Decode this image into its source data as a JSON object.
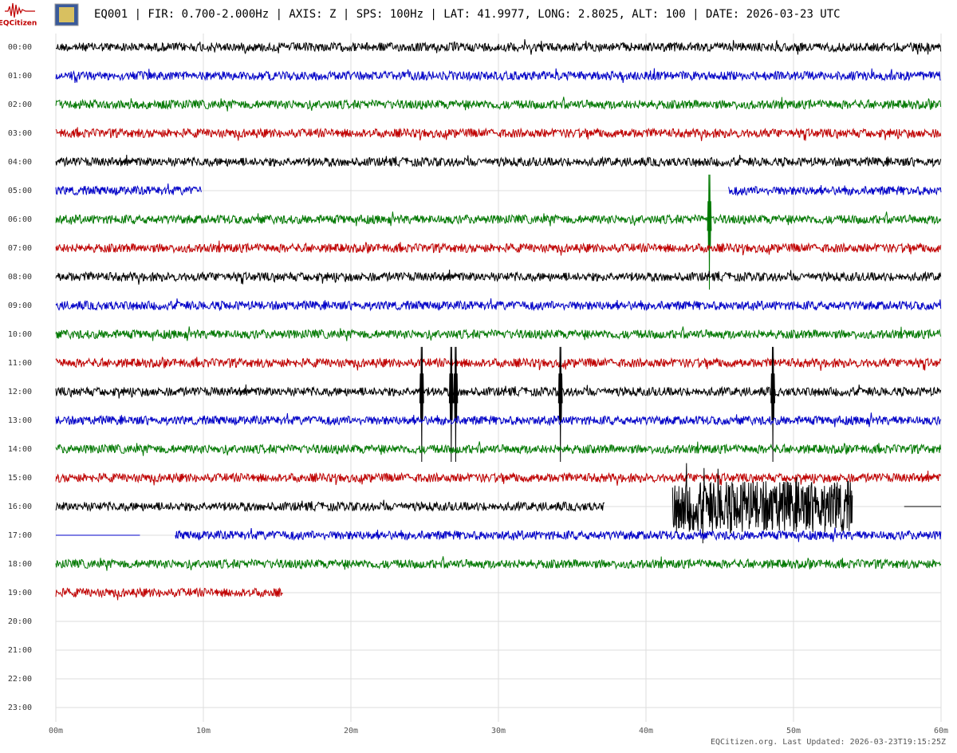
{
  "chart_data": {
    "type": "helicorder",
    "brand": "EQCitizen",
    "title": "EQ001 | FIR: 0.700-2.000Hz | AXIS: Z | SPS: 100Hz | LAT: 41.9977, LONG: 2.8025, ALT: 100 | DATE: 2026-03-23 UTC",
    "footer": "EQCitizen.org. Last Updated: 2026-03-23T19:15:25Z",
    "grid": true,
    "xlim": [
      0,
      60
    ],
    "xticks": [
      {
        "value": 0,
        "label": "00m"
      },
      {
        "value": 10,
        "label": "10m"
      },
      {
        "value": 20,
        "label": "20m"
      },
      {
        "value": 30,
        "label": "30m"
      },
      {
        "value": 40,
        "label": "40m"
      },
      {
        "value": 50,
        "label": "50m"
      },
      {
        "value": 60,
        "label": "60m"
      }
    ],
    "series": [
      {
        "name": "00:00",
        "color": "#000000",
        "segments": [
          [
            0,
            60
          ]
        ]
      },
      {
        "name": "01:00",
        "color": "#0000c8",
        "segments": [
          [
            0,
            60
          ]
        ]
      },
      {
        "name": "02:00",
        "color": "#007800",
        "segments": [
          [
            0,
            60
          ]
        ]
      },
      {
        "name": "03:00",
        "color": "#c00000",
        "segments": [
          [
            0,
            60
          ]
        ]
      },
      {
        "name": "04:00",
        "color": "#000000",
        "segments": [
          [
            0,
            60
          ]
        ]
      },
      {
        "name": "05:00",
        "color": "#0000c8",
        "segments": [
          [
            0,
            9.9
          ],
          [
            45.6,
            60
          ]
        ]
      },
      {
        "name": "06:00",
        "color": "#007800",
        "segments": [
          [
            0,
            60
          ]
        ],
        "spikes": [
          44.3
        ]
      },
      {
        "name": "07:00",
        "color": "#c00000",
        "segments": [
          [
            0,
            60
          ]
        ]
      },
      {
        "name": "08:00",
        "color": "#000000",
        "segments": [
          [
            0,
            60
          ]
        ]
      },
      {
        "name": "09:00",
        "color": "#0000c8",
        "segments": [
          [
            0,
            60
          ]
        ]
      },
      {
        "name": "10:00",
        "color": "#007800",
        "segments": [
          [
            0,
            60
          ]
        ]
      },
      {
        "name": "11:00",
        "color": "#c00000",
        "segments": [
          [
            0,
            60
          ]
        ]
      },
      {
        "name": "12:00",
        "color": "#000000",
        "segments": [
          [
            0,
            60
          ]
        ],
        "spikes": [
          24.8,
          26.8,
          27.1,
          34.2,
          48.6
        ]
      },
      {
        "name": "13:00",
        "color": "#0000c8",
        "segments": [
          [
            0,
            60
          ]
        ]
      },
      {
        "name": "14:00",
        "color": "#007800",
        "segments": [
          [
            0,
            60
          ]
        ]
      },
      {
        "name": "15:00",
        "color": "#c00000",
        "segments": [
          [
            0,
            60
          ]
        ]
      },
      {
        "name": "16:00",
        "color": "#000000",
        "segments": [
          [
            0,
            37.2
          ]
        ],
        "bursts": [
          [
            41.8,
            54
          ]
        ],
        "flat": [
          [
            57.5,
            60
          ]
        ]
      },
      {
        "name": "17:00",
        "color": "#0000c8",
        "segments": [
          [
            8.1,
            60
          ]
        ],
        "flat": [
          [
            0,
            5.7
          ]
        ]
      },
      {
        "name": "18:00",
        "color": "#007800",
        "segments": [
          [
            0,
            60
          ]
        ]
      },
      {
        "name": "19:00",
        "color": "#c00000",
        "segments": [
          [
            0,
            15.4
          ]
        ]
      },
      {
        "name": "20:00",
        "color": "#000000",
        "segments": []
      },
      {
        "name": "21:00",
        "color": "#0000c8",
        "segments": []
      },
      {
        "name": "22:00",
        "color": "#007800",
        "segments": []
      },
      {
        "name": "23:00",
        "color": "#c00000",
        "segments": []
      }
    ]
  }
}
